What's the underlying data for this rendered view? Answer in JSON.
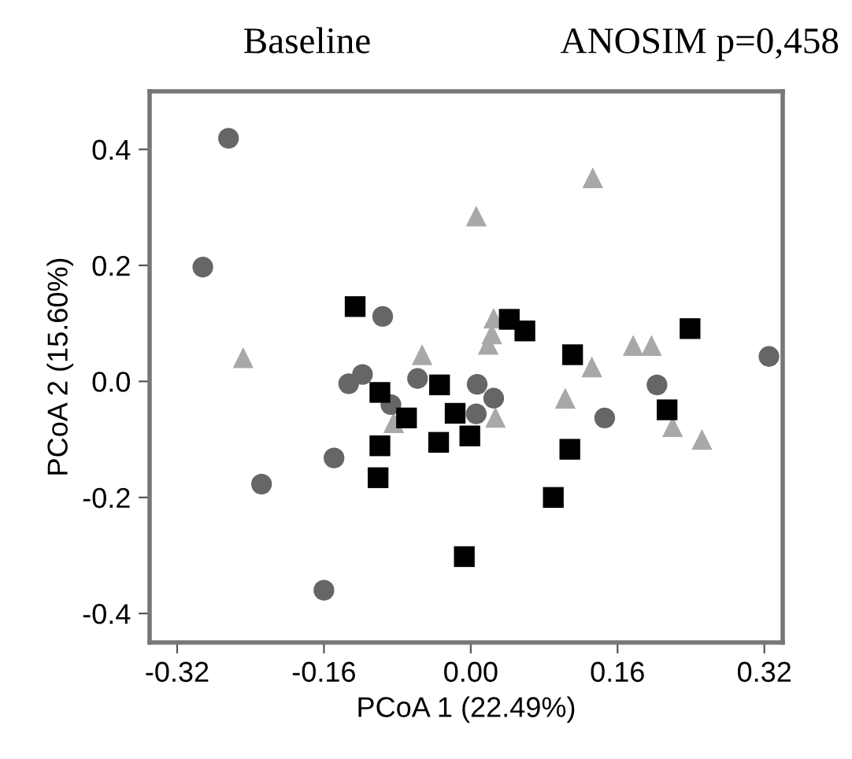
{
  "chart_data": {
    "type": "scatter",
    "title": "Baseline",
    "annotations": [
      "ANOSIM p=0,458"
    ],
    "xlabel": "PCoA 1 (22.49%)",
    "ylabel": "PCoA 2 (15.60%)",
    "xlim": [
      -0.35,
      0.34
    ],
    "ylim": [
      -0.45,
      0.5
    ],
    "xticks": [
      {
        "value": -0.32,
        "label": "-0.32"
      },
      {
        "value": -0.16,
        "label": "-0.16"
      },
      {
        "value": 0,
        "label": "0.00"
      },
      {
        "value": 0.16,
        "label": "0.16"
      },
      {
        "value": 0.32,
        "label": "0.32"
      }
    ],
    "yticks": [
      {
        "value": -0.4,
        "label": "-0.4"
      },
      {
        "value": -0.2,
        "label": "-0.2"
      },
      {
        "value": 0,
        "label": "0.0"
      },
      {
        "value": 0.2,
        "label": "0.2"
      },
      {
        "value": 0.4,
        "label": "0.4"
      }
    ],
    "grid": false,
    "legend": false,
    "series": [
      {
        "color": "#a8a8a8",
        "marker": "triangle",
        "x": [
          -0.248,
          0.006,
          0.133,
          -0.053,
          0.025,
          0.023,
          0.019,
          0.177,
          0.197,
          0.132,
          0.103,
          0.027,
          -0.084,
          0.22,
          0.252
        ],
        "values": [
          0.041,
          0.285,
          0.351,
          0.046,
          0.109,
          0.082,
          0.064,
          0.062,
          0.062,
          0.025,
          -0.029,
          -0.062,
          -0.071,
          -0.078,
          -0.1
        ]
      },
      {
        "color": "#666666",
        "marker": "circle",
        "x": [
          -0.264,
          -0.292,
          -0.096,
          0.325,
          -0.133,
          -0.118,
          -0.087,
          -0.058,
          0.007,
          0.025,
          0.006,
          0.146,
          0.203,
          -0.149,
          -0.228,
          -0.16
        ],
        "values": [
          0.419,
          0.197,
          0.112,
          0.043,
          -0.004,
          0.012,
          -0.04,
          0.005,
          -0.005,
          -0.029,
          -0.056,
          -0.063,
          -0.006,
          -0.132,
          -0.177,
          -0.36
        ]
      },
      {
        "color": "#000000",
        "marker": "square",
        "x": [
          -0.126,
          0.042,
          0.059,
          0.111,
          0.239,
          -0.099,
          -0.034,
          -0.07,
          -0.017,
          -0.099,
          -0.035,
          -0.001,
          -0.101,
          0.108,
          0.214,
          0.09,
          -0.007
        ],
        "values": [
          0.129,
          0.107,
          0.087,
          0.046,
          0.091,
          -0.019,
          -0.006,
          -0.063,
          -0.055,
          -0.111,
          -0.105,
          -0.094,
          -0.166,
          -0.117,
          -0.049,
          -0.2,
          -0.302
        ]
      }
    ]
  }
}
